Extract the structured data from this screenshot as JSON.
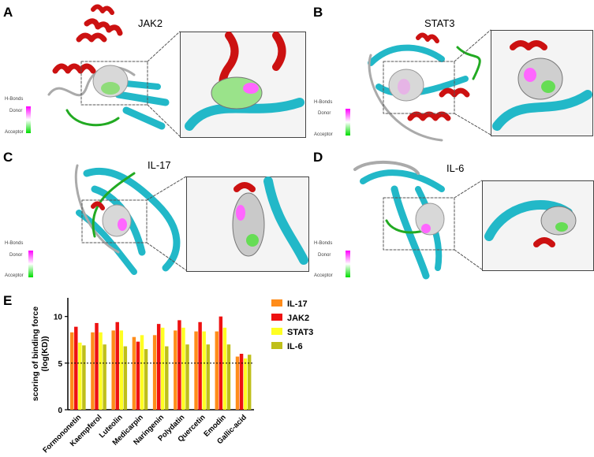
{
  "panels": {
    "A": {
      "letter": "A",
      "protein": "JAK2"
    },
    "B": {
      "letter": "B",
      "protein": "STAT3"
    },
    "C": {
      "letter": "C",
      "protein": "IL-17"
    },
    "D": {
      "letter": "D",
      "protein": "IL-6"
    },
    "E": {
      "letter": "E"
    }
  },
  "hbond_legend": {
    "title": "H-Bonds",
    "donor": "Donor",
    "acceptor": "Acceptor"
  },
  "colors": {
    "helix": "#cc1111",
    "sheet": "#22b8c8",
    "coil": "#aaaaaa",
    "turn": "#22aa22",
    "donor": "#ff00ff",
    "acceptor": "#00dd00"
  },
  "chart_data": {
    "type": "bar",
    "ylabel": "scoring of binding force\n(log(KD))",
    "ylim": [
      0,
      12
    ],
    "yticks": [
      0,
      5,
      10
    ],
    "threshold": 5,
    "categories": [
      "Formononetin",
      "Kaempferol",
      "Luteolin",
      "Medicarpin",
      "Naringenin",
      "Polydatin",
      "Quercetin",
      "Emodin",
      "Gallic-acid"
    ],
    "series": [
      {
        "name": "IL-17",
        "color": "#ff8c1a",
        "values": [
          8.3,
          8.3,
          8.5,
          7.8,
          8.0,
          8.5,
          8.4,
          8.4,
          5.7
        ]
      },
      {
        "name": "JAK2",
        "color": "#ee1111",
        "values": [
          8.9,
          9.3,
          9.4,
          7.3,
          9.2,
          9.6,
          9.4,
          10.0,
          6.0
        ]
      },
      {
        "name": "STAT3",
        "color": "#ffff22",
        "values": [
          7.2,
          8.3,
          8.5,
          8.0,
          8.8,
          8.8,
          8.4,
          8.8,
          5.5
        ]
      },
      {
        "name": "IL-6",
        "color": "#bfbf1a",
        "values": [
          6.9,
          7.0,
          6.8,
          6.5,
          6.8,
          7.0,
          7.0,
          7.0,
          5.9
        ]
      }
    ]
  }
}
